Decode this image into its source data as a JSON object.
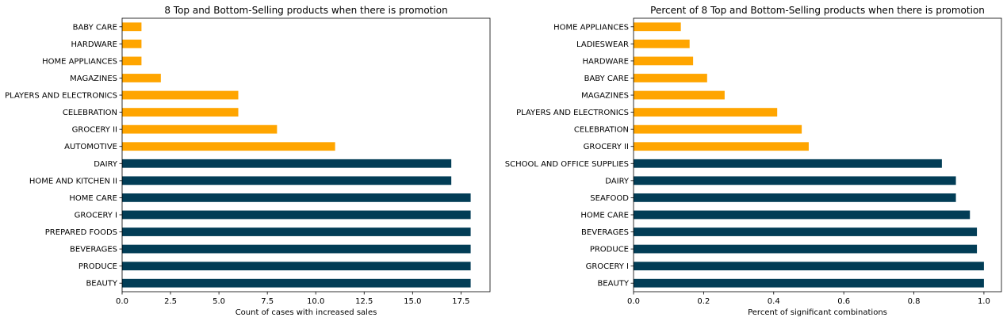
{
  "colors": {
    "top": "#023d56",
    "bottom": "#ffa500"
  },
  "chart_data": [
    {
      "type": "bar",
      "orientation": "horizontal",
      "title": "8 Top and Bottom-Selling products when there is promotion",
      "xlabel": "Count of cases with increased sales",
      "ylabel": "",
      "xlim": [
        0,
        19
      ],
      "xticks": [
        "0.0",
        "2.5",
        "5.0",
        "7.5",
        "10.0",
        "12.5",
        "15.0",
        "17.5"
      ],
      "xtick_values": [
        0,
        2.5,
        5,
        7.5,
        10,
        12.5,
        15,
        17.5
      ],
      "categories": [
        "BEAUTY",
        "PRODUCE",
        "BEVERAGES",
        "PREPARED FOODS",
        "GROCERY I",
        "HOME CARE",
        "HOME AND KITCHEN II",
        "DAIRY",
        "AUTOMOTIVE",
        "GROCERY II",
        "CELEBRATION",
        "PLAYERS AND ELECTRONICS",
        "MAGAZINES",
        "HOME APPLIANCES",
        "HARDWARE",
        "BABY CARE"
      ],
      "values": [
        18,
        18,
        18,
        18,
        18,
        18,
        17,
        17,
        11,
        8,
        6,
        6,
        2,
        1,
        1,
        1
      ],
      "groups": [
        "top",
        "top",
        "top",
        "top",
        "top",
        "top",
        "top",
        "top",
        "bottom",
        "bottom",
        "bottom",
        "bottom",
        "bottom",
        "bottom",
        "bottom",
        "bottom"
      ]
    },
    {
      "type": "bar",
      "orientation": "horizontal",
      "title": "Percent of 8 Top and Bottom-Selling products when there is promotion",
      "xlabel": "Percent of significant combinations",
      "ylabel": "",
      "xlim": [
        0,
        1.05
      ],
      "xticks": [
        "0.0",
        "0.2",
        "0.4",
        "0.6",
        "0.8",
        "1.0"
      ],
      "xtick_values": [
        0,
        0.2,
        0.4,
        0.6,
        0.8,
        1.0
      ],
      "categories": [
        "BEAUTY",
        "GROCERY I",
        "PRODUCE",
        "BEVERAGES",
        "HOME CARE",
        "SEAFOOD",
        "DAIRY",
        "SCHOOL AND OFFICE SUPPLIES",
        "GROCERY II",
        "CELEBRATION",
        "PLAYERS AND ELECTRONICS",
        "MAGAZINES",
        "BABY CARE",
        "HARDWARE",
        "LADIESWEAR",
        "HOME APPLIANCES"
      ],
      "values": [
        1.0,
        1.0,
        0.98,
        0.98,
        0.96,
        0.92,
        0.92,
        0.88,
        0.5,
        0.48,
        0.41,
        0.26,
        0.21,
        0.17,
        0.16,
        0.135
      ],
      "groups": [
        "top",
        "top",
        "top",
        "top",
        "top",
        "top",
        "top",
        "top",
        "bottom",
        "bottom",
        "bottom",
        "bottom",
        "bottom",
        "bottom",
        "bottom",
        "bottom"
      ]
    }
  ]
}
